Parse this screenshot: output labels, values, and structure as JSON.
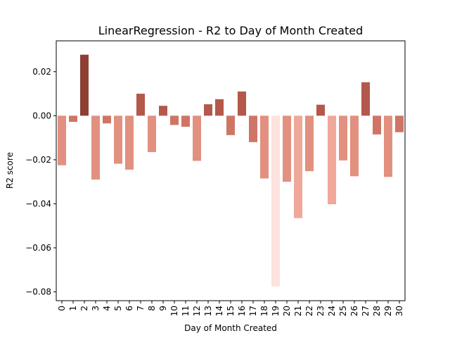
{
  "chart_data": {
    "type": "bar",
    "title": "LinearRegression - R2 to Day of Month Created",
    "xlabel": "Day of Month Created",
    "ylabel": "R2 score",
    "categories": [
      "0",
      "1",
      "2",
      "3",
      "4",
      "5",
      "6",
      "7",
      "8",
      "9",
      "10",
      "11",
      "12",
      "13",
      "14",
      "15",
      "16",
      "17",
      "18",
      "19",
      "20",
      "21",
      "22",
      "23",
      "24",
      "25",
      "26",
      "27",
      "28",
      "29",
      "30"
    ],
    "values": [
      -0.0225,
      -0.0028,
      0.0277,
      -0.029,
      -0.0035,
      -0.0218,
      -0.0245,
      0.01,
      -0.0165,
      0.0045,
      -0.0042,
      -0.005,
      -0.0205,
      0.0052,
      0.0075,
      -0.0088,
      0.011,
      -0.012,
      -0.0285,
      -0.0775,
      -0.03,
      -0.0465,
      -0.0252,
      0.005,
      -0.0402,
      -0.0203,
      -0.0275,
      0.0152,
      -0.0085,
      -0.0278,
      -0.0075
    ],
    "ylim": [
      -0.084,
      0.034
    ],
    "yticks": [
      {
        "value": 0.02,
        "label": "0.02"
      },
      {
        "value": 0.0,
        "label": "0.00"
      },
      {
        "value": -0.02,
        "label": "−0.02"
      },
      {
        "value": -0.04,
        "label": "−0.04"
      },
      {
        "value": -0.06,
        "label": "−0.06"
      },
      {
        "value": -0.08,
        "label": "−0.08"
      }
    ],
    "grid": false,
    "legend": "none",
    "colors": {
      "palette": [
        "#fde2dd",
        "#f7c2b7",
        "#efa89a",
        "#e2907f",
        "#cf7565",
        "#b4584b",
        "#8e3f33"
      ],
      "axis": "#000000",
      "background": "#ffffff"
    }
  }
}
